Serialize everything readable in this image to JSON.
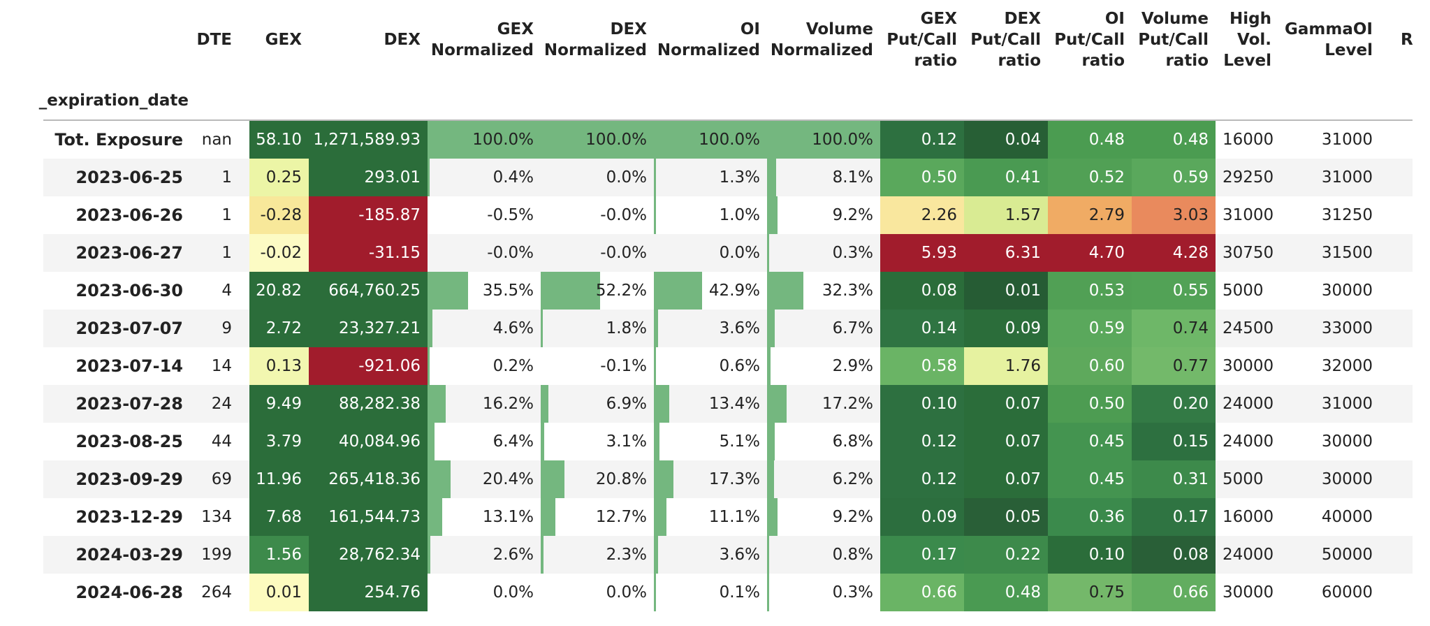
{
  "index_name": "_expiration_date",
  "columns": [
    {
      "key": "DTE",
      "label": "DTE"
    },
    {
      "key": "GEX",
      "label": "GEX"
    },
    {
      "key": "DEX",
      "label": "DEX"
    },
    {
      "key": "GEXN",
      "label": "GEX\nNormalized"
    },
    {
      "key": "DEXN",
      "label": "DEX\nNormalized"
    },
    {
      "key": "OIN",
      "label": "OI\nNormalized"
    },
    {
      "key": "VOLN",
      "label": "Volume\nNormalized"
    },
    {
      "key": "GEXPC",
      "label": "GEX\nPut/Call\nratio"
    },
    {
      "key": "DEXPC",
      "label": "DEX\nPut/Call\nratio"
    },
    {
      "key": "OIPC",
      "label": "OI\nPut/Call\nratio"
    },
    {
      "key": "VOLPC",
      "label": "Volume\nPut/Call\nratio"
    },
    {
      "key": "HVL",
      "label": "High\nVol.\nLevel"
    },
    {
      "key": "GOIL",
      "label": "GammaOI\nLevel"
    },
    {
      "key": "R",
      "label": "R"
    }
  ],
  "rows": [
    {
      "date": "Tot. Exposure",
      "DTE": "nan",
      "GEX": "58.10",
      "DEX": "1,271,589.93",
      "GEXN": "100.0%",
      "DEXN": "100.0%",
      "OIN": "100.0%",
      "VOLN": "100.0%",
      "GEXPC": "0.12",
      "DEXPC": "0.04",
      "OIPC": "0.48",
      "VOLPC": "0.48",
      "HVL": "16000",
      "GOIL": "31000"
    },
    {
      "date": "2023-06-25",
      "DTE": "1",
      "GEX": "0.25",
      "DEX": "293.01",
      "GEXN": "0.4%",
      "DEXN": "0.0%",
      "OIN": "1.3%",
      "VOLN": "8.1%",
      "GEXPC": "0.50",
      "DEXPC": "0.41",
      "OIPC": "0.52",
      "VOLPC": "0.59",
      "HVL": "29250",
      "GOIL": "31000"
    },
    {
      "date": "2023-06-26",
      "DTE": "1",
      "GEX": "-0.28",
      "DEX": "-185.87",
      "GEXN": "-0.5%",
      "DEXN": "-0.0%",
      "OIN": "1.0%",
      "VOLN": "9.2%",
      "GEXPC": "2.26",
      "DEXPC": "1.57",
      "OIPC": "2.79",
      "VOLPC": "3.03",
      "HVL": "31000",
      "GOIL": "31250"
    },
    {
      "date": "2023-06-27",
      "DTE": "1",
      "GEX": "-0.02",
      "DEX": "-31.15",
      "GEXN": "-0.0%",
      "DEXN": "-0.0%",
      "OIN": "0.0%",
      "VOLN": "0.3%",
      "GEXPC": "5.93",
      "DEXPC": "6.31",
      "OIPC": "4.70",
      "VOLPC": "4.28",
      "HVL": "30750",
      "GOIL": "31500"
    },
    {
      "date": "2023-06-30",
      "DTE": "4",
      "GEX": "20.82",
      "DEX": "664,760.25",
      "GEXN": "35.5%",
      "DEXN": "52.2%",
      "OIN": "42.9%",
      "VOLN": "32.3%",
      "GEXPC": "0.08",
      "DEXPC": "0.01",
      "OIPC": "0.53",
      "VOLPC": "0.55",
      "HVL": "5000",
      "GOIL": "30000"
    },
    {
      "date": "2023-07-07",
      "DTE": "9",
      "GEX": "2.72",
      "DEX": "23,327.21",
      "GEXN": "4.6%",
      "DEXN": "1.8%",
      "OIN": "3.6%",
      "VOLN": "6.7%",
      "GEXPC": "0.14",
      "DEXPC": "0.09",
      "OIPC": "0.59",
      "VOLPC": "0.74",
      "HVL": "24500",
      "GOIL": "33000"
    },
    {
      "date": "2023-07-14",
      "DTE": "14",
      "GEX": "0.13",
      "DEX": "-921.06",
      "GEXN": "0.2%",
      "DEXN": "-0.1%",
      "OIN": "0.6%",
      "VOLN": "2.9%",
      "GEXPC": "0.58",
      "DEXPC": "1.76",
      "OIPC": "0.60",
      "VOLPC": "0.77",
      "HVL": "30000",
      "GOIL": "32000"
    },
    {
      "date": "2023-07-28",
      "DTE": "24",
      "GEX": "9.49",
      "DEX": "88,282.38",
      "GEXN": "16.2%",
      "DEXN": "6.9%",
      "OIN": "13.4%",
      "VOLN": "17.2%",
      "GEXPC": "0.10",
      "DEXPC": "0.07",
      "OIPC": "0.50",
      "VOLPC": "0.20",
      "HVL": "24000",
      "GOIL": "31000"
    },
    {
      "date": "2023-08-25",
      "DTE": "44",
      "GEX": "3.79",
      "DEX": "40,084.96",
      "GEXN": "6.4%",
      "DEXN": "3.1%",
      "OIN": "5.1%",
      "VOLN": "6.8%",
      "GEXPC": "0.12",
      "DEXPC": "0.07",
      "OIPC": "0.45",
      "VOLPC": "0.15",
      "HVL": "24000",
      "GOIL": "30000"
    },
    {
      "date": "2023-09-29",
      "DTE": "69",
      "GEX": "11.96",
      "DEX": "265,418.36",
      "GEXN": "20.4%",
      "DEXN": "20.8%",
      "OIN": "17.3%",
      "VOLN": "6.2%",
      "GEXPC": "0.12",
      "DEXPC": "0.07",
      "OIPC": "0.45",
      "VOLPC": "0.31",
      "HVL": "5000",
      "GOIL": "30000"
    },
    {
      "date": "2023-12-29",
      "DTE": "134",
      "GEX": "7.68",
      "DEX": "161,544.73",
      "GEXN": "13.1%",
      "DEXN": "12.7%",
      "OIN": "11.1%",
      "VOLN": "9.2%",
      "GEXPC": "0.09",
      "DEXPC": "0.05",
      "OIPC": "0.36",
      "VOLPC": "0.17",
      "HVL": "16000",
      "GOIL": "40000"
    },
    {
      "date": "2024-03-29",
      "DTE": "199",
      "GEX": "1.56",
      "DEX": "28,762.34",
      "GEXN": "2.6%",
      "DEXN": "2.3%",
      "OIN": "3.6%",
      "VOLN": "0.8%",
      "GEXPC": "0.17",
      "DEXPC": "0.22",
      "OIPC": "0.10",
      "VOLPC": "0.08",
      "HVL": "24000",
      "GOIL": "50000"
    },
    {
      "date": "2024-06-28",
      "DTE": "264",
      "GEX": "0.01",
      "DEX": "254.76",
      "GEXN": "0.0%",
      "DEXN": "0.0%",
      "OIN": "0.1%",
      "VOLN": "0.3%",
      "GEXPC": "0.66",
      "DEXPC": "0.48",
      "OIPC": "0.75",
      "VOLPC": "0.66",
      "HVL": "30000",
      "GOIL": "60000"
    }
  ],
  "cell_colors": {
    "GEX": [
      "#2b6d3a",
      "#ecf5a6",
      "#f8e89a",
      "#fcfbc4",
      "#2b6d3a",
      "#2b6d3a",
      "#f2f7b0",
      "#2b6d3a",
      "#2b6d3a",
      "#2b6d3a",
      "#2b6d3a",
      "#3d8a4b",
      "#fdfbbf"
    ],
    "DEX": [
      "#2b6d3a",
      "#2b6d3a",
      "#a11c2c",
      "#a11c2c",
      "#2b6d3a",
      "#2b6d3a",
      "#a11c2c",
      "#2b6d3a",
      "#2b6d3a",
      "#2b6d3a",
      "#2b6d3a",
      "#2b6d3a",
      "#2b6d3a"
    ],
    "GEXPC": [
      "#2d7040",
      "#5aa85c",
      "#f9e79e",
      "#a11c2c",
      "#2b6d3a",
      "#2f7442",
      "#6ab465",
      "#2d7040",
      "#2d7040",
      "#2d7040",
      "#2c6e3e",
      "#3b8a4c",
      "#6ab465"
    ],
    "DEXPC": [
      "#275f35",
      "#4a9a52",
      "#d9eb93",
      "#a11c2c",
      "#265c34",
      "#2b6d3a",
      "#e6f2a0",
      "#2b6d3a",
      "#2b6d3a",
      "#2b6d3a",
      "#295f37",
      "#3d8a4b",
      "#4a9a52"
    ],
    "OIPC": [
      "#4b9c51",
      "#51a055",
      "#f0ab64",
      "#a11c2c",
      "#51a055",
      "#5aa85c",
      "#5ea95c",
      "#4d9c52",
      "#449450",
      "#449450",
      "#3b8a4c",
      "#2b6d3a",
      "#74b86a"
    ],
    "VOLPC": [
      "#4b9c51",
      "#5aa85c",
      "#e98a5d",
      "#a11c2c",
      "#52a256",
      "#6eb768",
      "#73b96a",
      "#337a45",
      "#2d7040",
      "#3d8a4b",
      "#2f7442",
      "#295f37",
      "#62ad60"
    ]
  },
  "bar_color": "#74b77f"
}
